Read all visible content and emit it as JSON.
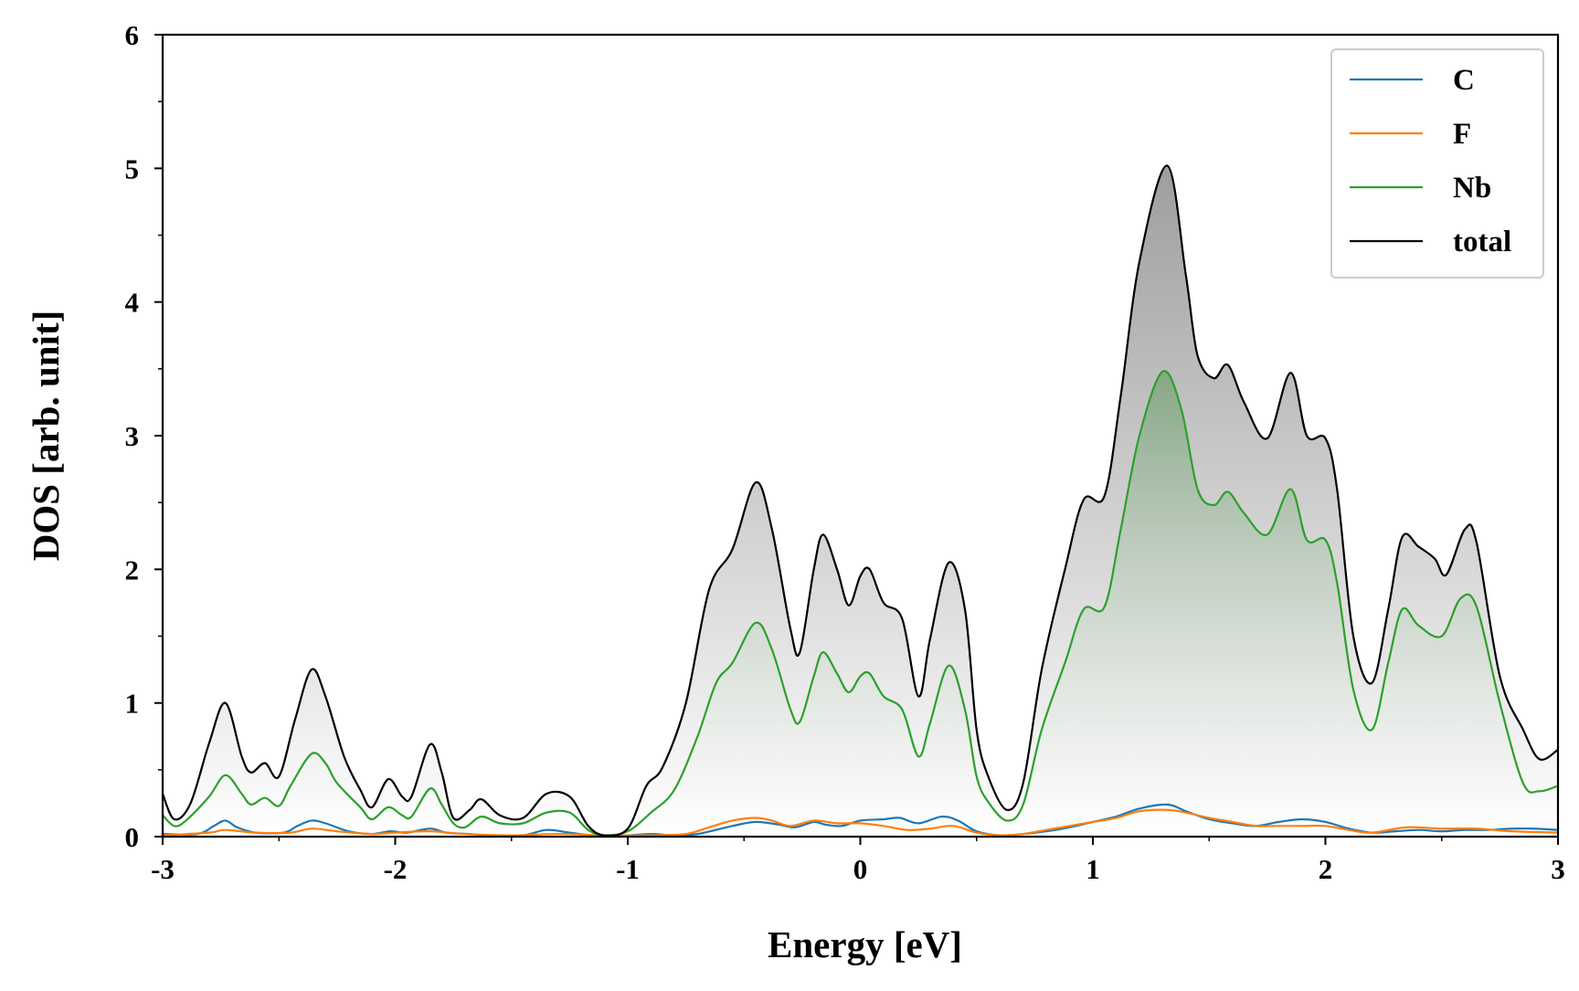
{
  "chart_data": {
    "type": "area",
    "title": "",
    "xlabel": "Energy [eV]",
    "ylabel": "DOS [arb. unit]",
    "xlim": [
      -3,
      3
    ],
    "ylim": [
      0,
      6
    ],
    "x_ticks": [
      -3,
      -2,
      -1,
      0,
      1,
      2,
      3
    ],
    "x_tick_labels": [
      "-3",
      "-2",
      "-1",
      "0",
      "1",
      "2",
      "3"
    ],
    "y_ticks": [
      0,
      1,
      2,
      3,
      4,
      5,
      6
    ],
    "y_tick_labels": [
      "0",
      "1",
      "2",
      "3",
      "4",
      "5",
      "6"
    ],
    "grid": false,
    "legend_position": "top-right",
    "fill_under": [
      "total",
      "Nb"
    ],
    "series": [
      {
        "name": "C",
        "color": "#1f77b4",
        "points": [
          [
            -3,
            0.02
          ],
          [
            -2.85,
            0.02
          ],
          [
            -2.78,
            0.08
          ],
          [
            -2.73,
            0.12
          ],
          [
            -2.68,
            0.07
          ],
          [
            -2.6,
            0.03
          ],
          [
            -2.48,
            0.03
          ],
          [
            -2.42,
            0.08
          ],
          [
            -2.36,
            0.12
          ],
          [
            -2.3,
            0.1
          ],
          [
            -2.2,
            0.04
          ],
          [
            -2.1,
            0.02
          ],
          [
            -2.02,
            0.04
          ],
          [
            -1.95,
            0.03
          ],
          [
            -1.85,
            0.06
          ],
          [
            -1.78,
            0.03
          ],
          [
            -1.68,
            0.02
          ],
          [
            -1.6,
            0.01
          ],
          [
            -1.45,
            0.01
          ],
          [
            -1.35,
            0.05
          ],
          [
            -1.25,
            0.03
          ],
          [
            -1.15,
            0.01
          ],
          [
            -1.0,
            0.01
          ],
          [
            -0.9,
            0.02
          ],
          [
            -0.8,
            0.01
          ],
          [
            -0.7,
            0.02
          ],
          [
            -0.55,
            0.08
          ],
          [
            -0.45,
            0.11
          ],
          [
            -0.35,
            0.09
          ],
          [
            -0.28,
            0.07
          ],
          [
            -0.2,
            0.11
          ],
          [
            -0.15,
            0.09
          ],
          [
            -0.08,
            0.08
          ],
          [
            0.0,
            0.12
          ],
          [
            0.1,
            0.13
          ],
          [
            0.17,
            0.14
          ],
          [
            0.25,
            0.1
          ],
          [
            0.35,
            0.15
          ],
          [
            0.42,
            0.12
          ],
          [
            0.5,
            0.04
          ],
          [
            0.6,
            0.01
          ],
          [
            0.7,
            0.02
          ],
          [
            0.8,
            0.04
          ],
          [
            0.9,
            0.07
          ],
          [
            1.0,
            0.11
          ],
          [
            1.1,
            0.15
          ],
          [
            1.2,
            0.21
          ],
          [
            1.32,
            0.24
          ],
          [
            1.4,
            0.19
          ],
          [
            1.5,
            0.13
          ],
          [
            1.6,
            0.1
          ],
          [
            1.7,
            0.08
          ],
          [
            1.8,
            0.11
          ],
          [
            1.9,
            0.13
          ],
          [
            2.0,
            0.11
          ],
          [
            2.1,
            0.06
          ],
          [
            2.2,
            0.03
          ],
          [
            2.3,
            0.04
          ],
          [
            2.4,
            0.05
          ],
          [
            2.5,
            0.04
          ],
          [
            2.6,
            0.05
          ],
          [
            2.7,
            0.05
          ],
          [
            2.8,
            0.06
          ],
          [
            2.9,
            0.06
          ],
          [
            3.0,
            0.05
          ]
        ]
      },
      {
        "name": "F",
        "color": "#ff7f0e",
        "points": [
          [
            -3,
            0.01
          ],
          [
            -2.8,
            0.03
          ],
          [
            -2.73,
            0.05
          ],
          [
            -2.6,
            0.03
          ],
          [
            -2.45,
            0.03
          ],
          [
            -2.36,
            0.06
          ],
          [
            -2.25,
            0.04
          ],
          [
            -2.1,
            0.02
          ],
          [
            -2.0,
            0.03
          ],
          [
            -1.85,
            0.04
          ],
          [
            -1.7,
            0.02
          ],
          [
            -1.5,
            0.01
          ],
          [
            -1.3,
            0.02
          ],
          [
            -1.1,
            0.01
          ],
          [
            -0.9,
            0.01
          ],
          [
            -0.75,
            0.02
          ],
          [
            -0.65,
            0.07
          ],
          [
            -0.55,
            0.12
          ],
          [
            -0.45,
            0.14
          ],
          [
            -0.38,
            0.12
          ],
          [
            -0.3,
            0.08
          ],
          [
            -0.2,
            0.12
          ],
          [
            -0.1,
            0.1
          ],
          [
            0.0,
            0.1
          ],
          [
            0.1,
            0.08
          ],
          [
            0.2,
            0.05
          ],
          [
            0.3,
            0.06
          ],
          [
            0.4,
            0.08
          ],
          [
            0.5,
            0.03
          ],
          [
            0.6,
            0.01
          ],
          [
            0.7,
            0.02
          ],
          [
            0.8,
            0.05
          ],
          [
            0.9,
            0.08
          ],
          [
            1.0,
            0.11
          ],
          [
            1.1,
            0.14
          ],
          [
            1.2,
            0.19
          ],
          [
            1.32,
            0.2
          ],
          [
            1.4,
            0.18
          ],
          [
            1.5,
            0.14
          ],
          [
            1.6,
            0.11
          ],
          [
            1.7,
            0.08
          ],
          [
            1.8,
            0.08
          ],
          [
            1.9,
            0.08
          ],
          [
            2.0,
            0.08
          ],
          [
            2.1,
            0.05
          ],
          [
            2.2,
            0.03
          ],
          [
            2.35,
            0.07
          ],
          [
            2.5,
            0.06
          ],
          [
            2.65,
            0.06
          ],
          [
            2.8,
            0.04
          ],
          [
            3.0,
            0.03
          ]
        ]
      },
      {
        "name": "Nb",
        "color": "#2ca02c",
        "points": [
          [
            -3,
            0.16
          ],
          [
            -2.95,
            0.08
          ],
          [
            -2.9,
            0.12
          ],
          [
            -2.8,
            0.3
          ],
          [
            -2.73,
            0.46
          ],
          [
            -2.66,
            0.32
          ],
          [
            -2.62,
            0.24
          ],
          [
            -2.56,
            0.29
          ],
          [
            -2.5,
            0.23
          ],
          [
            -2.45,
            0.38
          ],
          [
            -2.36,
            0.62
          ],
          [
            -2.3,
            0.55
          ],
          [
            -2.25,
            0.4
          ],
          [
            -2.15,
            0.22
          ],
          [
            -2.1,
            0.13
          ],
          [
            -2.03,
            0.22
          ],
          [
            -1.97,
            0.16
          ],
          [
            -1.93,
            0.15
          ],
          [
            -1.85,
            0.36
          ],
          [
            -1.8,
            0.24
          ],
          [
            -1.75,
            0.1
          ],
          [
            -1.7,
            0.07
          ],
          [
            -1.63,
            0.15
          ],
          [
            -1.55,
            0.1
          ],
          [
            -1.45,
            0.1
          ],
          [
            -1.35,
            0.18
          ],
          [
            -1.25,
            0.18
          ],
          [
            -1.17,
            0.05
          ],
          [
            -1.1,
            0.01
          ],
          [
            -1.0,
            0.04
          ],
          [
            -0.9,
            0.18
          ],
          [
            -0.8,
            0.35
          ],
          [
            -0.7,
            0.75
          ],
          [
            -0.62,
            1.15
          ],
          [
            -0.55,
            1.3
          ],
          [
            -0.45,
            1.6
          ],
          [
            -0.38,
            1.4
          ],
          [
            -0.3,
            0.95
          ],
          [
            -0.26,
            0.86
          ],
          [
            -0.2,
            1.2
          ],
          [
            -0.16,
            1.38
          ],
          [
            -0.1,
            1.22
          ],
          [
            -0.05,
            1.08
          ],
          [
            0.0,
            1.2
          ],
          [
            0.04,
            1.22
          ],
          [
            0.1,
            1.05
          ],
          [
            0.18,
            0.95
          ],
          [
            0.25,
            0.6
          ],
          [
            0.3,
            0.85
          ],
          [
            0.38,
            1.28
          ],
          [
            0.45,
            0.95
          ],
          [
            0.5,
            0.45
          ],
          [
            0.55,
            0.26
          ],
          [
            0.63,
            0.12
          ],
          [
            0.7,
            0.24
          ],
          [
            0.78,
            0.8
          ],
          [
            0.88,
            1.3
          ],
          [
            0.96,
            1.7
          ],
          [
            1.05,
            1.72
          ],
          [
            1.12,
            2.3
          ],
          [
            1.2,
            3.0
          ],
          [
            1.3,
            3.48
          ],
          [
            1.38,
            3.2
          ],
          [
            1.45,
            2.6
          ],
          [
            1.52,
            2.48
          ],
          [
            1.58,
            2.58
          ],
          [
            1.65,
            2.42
          ],
          [
            1.75,
            2.26
          ],
          [
            1.85,
            2.6
          ],
          [
            1.92,
            2.22
          ],
          [
            2.0,
            2.22
          ],
          [
            2.05,
            1.9
          ],
          [
            2.12,
            1.1
          ],
          [
            2.2,
            0.8
          ],
          [
            2.27,
            1.3
          ],
          [
            2.33,
            1.7
          ],
          [
            2.4,
            1.58
          ],
          [
            2.5,
            1.5
          ],
          [
            2.58,
            1.78
          ],
          [
            2.65,
            1.72
          ],
          [
            2.75,
            1.0
          ],
          [
            2.85,
            0.4
          ],
          [
            2.92,
            0.34
          ],
          [
            3.0,
            0.38
          ]
        ]
      },
      {
        "name": "total",
        "color": "#000000",
        "points": [
          [
            -3,
            0.32
          ],
          [
            -2.95,
            0.13
          ],
          [
            -2.88,
            0.25
          ],
          [
            -2.8,
            0.7
          ],
          [
            -2.73,
            1.0
          ],
          [
            -2.66,
            0.6
          ],
          [
            -2.62,
            0.48
          ],
          [
            -2.56,
            0.55
          ],
          [
            -2.5,
            0.45
          ],
          [
            -2.43,
            0.88
          ],
          [
            -2.36,
            1.25
          ],
          [
            -2.3,
            1.05
          ],
          [
            -2.22,
            0.6
          ],
          [
            -2.15,
            0.35
          ],
          [
            -2.1,
            0.22
          ],
          [
            -2.03,
            0.43
          ],
          [
            -1.97,
            0.3
          ],
          [
            -1.93,
            0.3
          ],
          [
            -1.85,
            0.69
          ],
          [
            -1.8,
            0.48
          ],
          [
            -1.75,
            0.14
          ],
          [
            -1.68,
            0.2
          ],
          [
            -1.63,
            0.28
          ],
          [
            -1.55,
            0.16
          ],
          [
            -1.45,
            0.14
          ],
          [
            -1.35,
            0.32
          ],
          [
            -1.25,
            0.3
          ],
          [
            -1.17,
            0.08
          ],
          [
            -1.1,
            0.01
          ],
          [
            -1.0,
            0.06
          ],
          [
            -0.92,
            0.38
          ],
          [
            -0.85,
            0.52
          ],
          [
            -0.75,
            1.0
          ],
          [
            -0.65,
            1.85
          ],
          [
            -0.55,
            2.15
          ],
          [
            -0.45,
            2.65
          ],
          [
            -0.38,
            2.3
          ],
          [
            -0.3,
            1.55
          ],
          [
            -0.26,
            1.38
          ],
          [
            -0.2,
            2.0
          ],
          [
            -0.16,
            2.26
          ],
          [
            -0.1,
            2.0
          ],
          [
            -0.05,
            1.73
          ],
          [
            0.0,
            1.95
          ],
          [
            0.04,
            2.0
          ],
          [
            0.1,
            1.75
          ],
          [
            0.18,
            1.63
          ],
          [
            0.25,
            1.05
          ],
          [
            0.3,
            1.48
          ],
          [
            0.38,
            2.05
          ],
          [
            0.45,
            1.7
          ],
          [
            0.5,
            0.8
          ],
          [
            0.55,
            0.45
          ],
          [
            0.63,
            0.2
          ],
          [
            0.7,
            0.4
          ],
          [
            0.78,
            1.25
          ],
          [
            0.88,
            2.0
          ],
          [
            0.96,
            2.52
          ],
          [
            1.05,
            2.55
          ],
          [
            1.12,
            3.3
          ],
          [
            1.2,
            4.3
          ],
          [
            1.32,
            5.02
          ],
          [
            1.4,
            4.2
          ],
          [
            1.45,
            3.6
          ],
          [
            1.52,
            3.43
          ],
          [
            1.58,
            3.53
          ],
          [
            1.65,
            3.25
          ],
          [
            1.75,
            2.98
          ],
          [
            1.85,
            3.47
          ],
          [
            1.92,
            3.0
          ],
          [
            2.0,
            2.98
          ],
          [
            2.05,
            2.6
          ],
          [
            2.12,
            1.5
          ],
          [
            2.2,
            1.15
          ],
          [
            2.27,
            1.7
          ],
          [
            2.33,
            2.24
          ],
          [
            2.4,
            2.17
          ],
          [
            2.47,
            2.08
          ],
          [
            2.52,
            1.96
          ],
          [
            2.6,
            2.3
          ],
          [
            2.65,
            2.2
          ],
          [
            2.75,
            1.2
          ],
          [
            2.85,
            0.8
          ],
          [
            2.92,
            0.58
          ],
          [
            3.0,
            0.65
          ]
        ]
      }
    ]
  }
}
